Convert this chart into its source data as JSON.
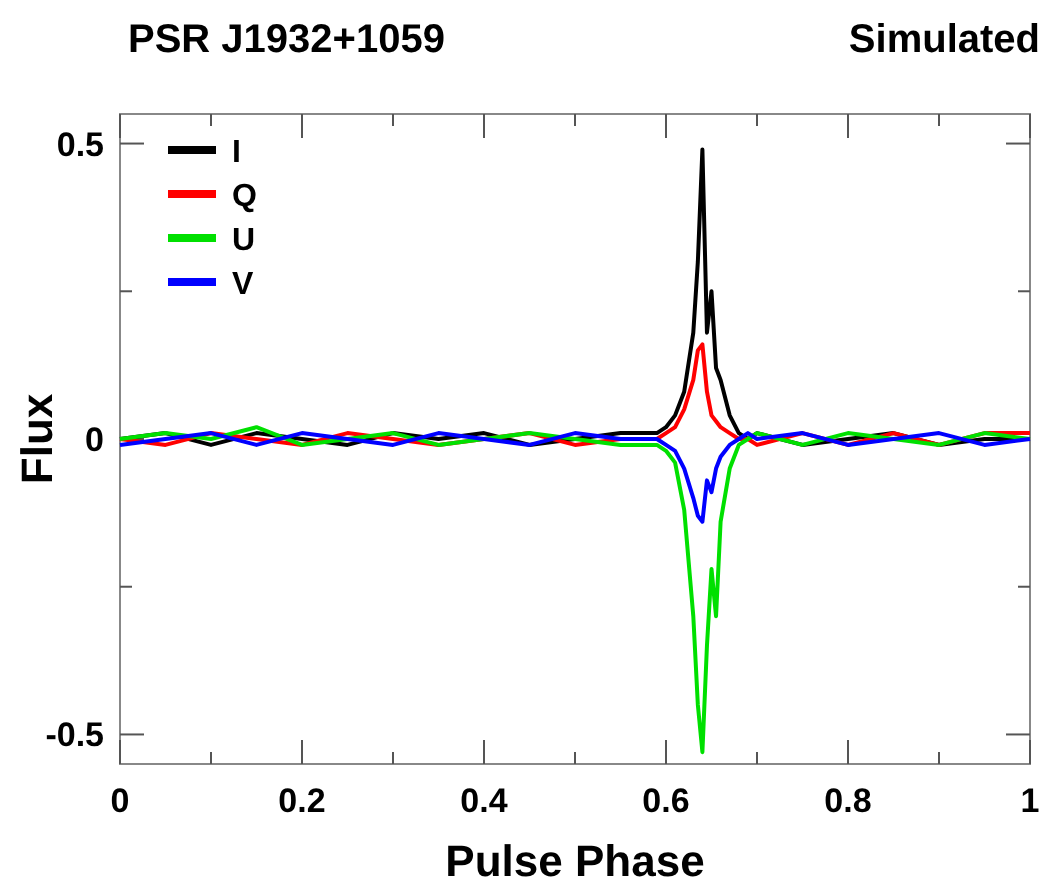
{
  "chart_data": {
    "type": "line",
    "title": "PSR J1932+1059",
    "subtitle": "Simulated",
    "xlabel": "Pulse Phase",
    "ylabel": "Flux",
    "x": [
      0,
      0.05,
      0.1,
      0.15,
      0.2,
      0.25,
      0.3,
      0.35,
      0.4,
      0.45,
      0.5,
      0.55,
      0.59,
      0.6,
      0.61,
      0.62,
      0.63,
      0.635,
      0.64,
      0.645,
      0.65,
      0.655,
      0.66,
      0.67,
      0.68,
      0.69,
      0.7,
      0.75,
      0.8,
      0.85,
      0.9,
      0.95,
      1
    ],
    "series": [
      {
        "name": "I",
        "color": "#000000",
        "values": [
          0,
          0.01,
          -0.01,
          0.01,
          0,
          -0.01,
          0.01,
          0,
          0.01,
          -0.01,
          0,
          0.01,
          0.01,
          0.02,
          0.04,
          0.08,
          0.18,
          0.3,
          0.49,
          0.18,
          0.25,
          0.12,
          0.1,
          0.04,
          0.01,
          0,
          0.01,
          -0.01,
          0,
          0.01,
          -0.01,
          0,
          0
        ]
      },
      {
        "name": "Q",
        "color": "#ff0000",
        "values": [
          0,
          -0.01,
          0.01,
          0,
          -0.01,
          0.01,
          0,
          -0.01,
          0,
          0.01,
          -0.01,
          0,
          0,
          0.01,
          0.02,
          0.05,
          0.1,
          0.15,
          0.16,
          0.08,
          0.04,
          0.03,
          0.02,
          0.01,
          0,
          0,
          -0.01,
          0.01,
          -0.01,
          0.01,
          -0.01,
          0.01,
          0.01
        ]
      },
      {
        "name": "U",
        "color": "#00e000",
        "values": [
          0,
          0.01,
          0,
          0.02,
          -0.01,
          0,
          0.01,
          -0.01,
          0,
          0.01,
          0,
          -0.01,
          -0.01,
          -0.02,
          -0.04,
          -0.12,
          -0.3,
          -0.45,
          -0.53,
          -0.35,
          -0.22,
          -0.3,
          -0.14,
          -0.05,
          -0.01,
          0,
          0.01,
          -0.01,
          0.01,
          0,
          -0.01,
          0.01,
          0
        ]
      },
      {
        "name": "V",
        "color": "#0000ff",
        "values": [
          -0.01,
          0,
          0.01,
          -0.01,
          0.01,
          0,
          -0.01,
          0.01,
          0,
          -0.01,
          0.01,
          0,
          0,
          -0.01,
          -0.02,
          -0.05,
          -0.1,
          -0.13,
          -0.14,
          -0.07,
          -0.09,
          -0.05,
          -0.03,
          -0.01,
          0,
          0.01,
          0,
          0.01,
          -0.01,
          0,
          0.01,
          -0.01,
          0
        ]
      }
    ],
    "xlim": [
      0,
      1
    ],
    "xticks": [
      0,
      {
        "value": 0.1,
        "label": null
      },
      {
        "value": 0.2,
        "label": "0.2"
      },
      {
        "value": 0.3,
        "label": null
      },
      {
        "value": 0.4,
        "label": "0.4"
      },
      {
        "value": 0.5,
        "label": null
      },
      {
        "value": 0.6,
        "label": "0.6"
      },
      {
        "value": 0.7,
        "label": null
      },
      {
        "value": 0.8,
        "label": "0.8"
      },
      {
        "value": 0.9,
        "label": null
      },
      1
    ],
    "ylim": [
      -0.55,
      0.55
    ],
    "yticks": [
      {
        "value": -0.5,
        "label": "-0.5"
      },
      {
        "value": -0.25,
        "label": null
      },
      0,
      {
        "value": 0.25,
        "label": null
      },
      {
        "value": 0.5,
        "label": "0.5"
      }
    ],
    "grid": false,
    "legend": "top left",
    "marker": "none",
    "line_style": "solid"
  }
}
